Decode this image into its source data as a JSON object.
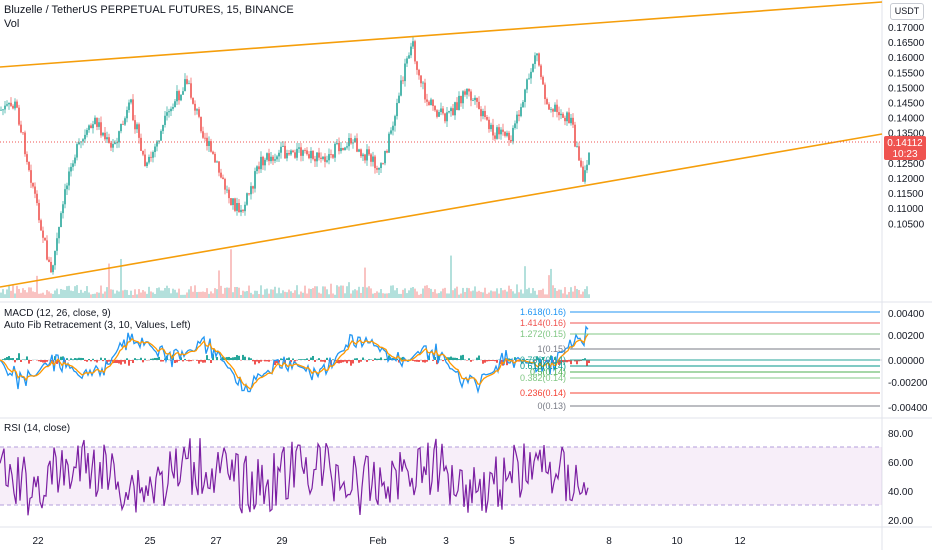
{
  "header": {
    "title": "Bluzelle / TetherUS PERPETUAL FUTURES, 15, BINANCE",
    "vol_label": "Vol"
  },
  "currency_button": "USDT",
  "price_pane": {
    "y_ticks": [
      "0.17000",
      "0.16500",
      "0.16000",
      "0.15500",
      "0.15000",
      "0.14500",
      "0.14000",
      "0.13500",
      "0.13000",
      "0.12500",
      "0.12000",
      "0.11500",
      "0.11000",
      "0.10500"
    ],
    "current_price": "0.14112",
    "countdown": "10:23",
    "colors": {
      "trendline": "#f59e0b",
      "up": "#26a69a",
      "down": "#ef5350",
      "price_tag": "#ef5350"
    }
  },
  "macd_pane": {
    "title": "MACD (12, 26, close, 9)",
    "subtitle": "Auto Fib Retracement (3, 10, Values, Left)",
    "y_ticks": [
      "0.00400",
      "0.00200",
      "0.00000",
      "-0.00200",
      "-0.00400"
    ],
    "fib_levels": [
      {
        "label": "1.618(0.16)",
        "color": "#2196f3"
      },
      {
        "label": "1.414(0.16)",
        "color": "#ef5350"
      },
      {
        "label": "1.272(0.15)",
        "color": "#81c784"
      },
      {
        "label": "1(0.15)",
        "color": "#787b86"
      },
      {
        "label": "0.786(0.14)",
        "color": "#26a69a"
      },
      {
        "label": "0.618(0.14)",
        "color": "#009688"
      },
      {
        "label": "0.5(0.14)",
        "color": "#4caf50"
      },
      {
        "label": "0.382(0.14)",
        "color": "#81c784"
      },
      {
        "label": "0.236(0.14)",
        "color": "#f44336"
      },
      {
        "label": "0(0.13)",
        "color": "#787b86"
      }
    ]
  },
  "rsi_pane": {
    "title": "RSI (14, close)",
    "y_ticks": [
      "80.00",
      "60.00",
      "40.00",
      "20.00"
    ],
    "band_color": "#9c27b0"
  },
  "x_axis": {
    "labels": [
      "22",
      "25",
      "27",
      "29",
      "Feb",
      "3",
      "5",
      "8",
      "10",
      "12"
    ]
  }
}
